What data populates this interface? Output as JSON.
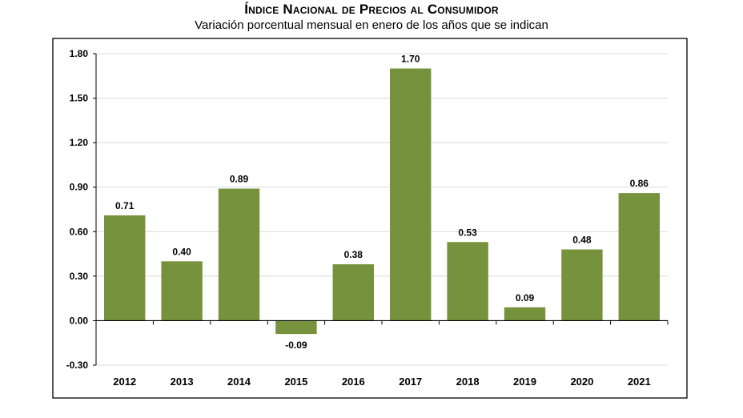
{
  "chart_data": {
    "type": "bar",
    "title": "Índice Nacional de Precios al Consumidor",
    "subtitle": "Variación porcentual mensual en enero de los años que se indican",
    "categories": [
      "2012",
      "2013",
      "2014",
      "2015",
      "2016",
      "2017",
      "2018",
      "2019",
      "2020",
      "2021"
    ],
    "values": [
      0.71,
      0.4,
      0.89,
      -0.09,
      0.38,
      1.7,
      0.53,
      0.09,
      0.48,
      0.86
    ],
    "value_labels": [
      "0.71",
      "0.40",
      "0.89",
      "-0.09",
      "0.38",
      "1.70",
      "0.53",
      "0.09",
      "0.48",
      "0.86"
    ],
    "yticks": [
      "1.80",
      "1.50",
      "1.20",
      "0.90",
      "0.60",
      "0.30",
      "0.00",
      "-0.30"
    ],
    "ylim": [
      -0.3,
      1.8
    ],
    "xlabel": "",
    "ylabel": "",
    "grid": true,
    "bar_color": "#76923c",
    "grid_color": "#d9d9d9"
  }
}
